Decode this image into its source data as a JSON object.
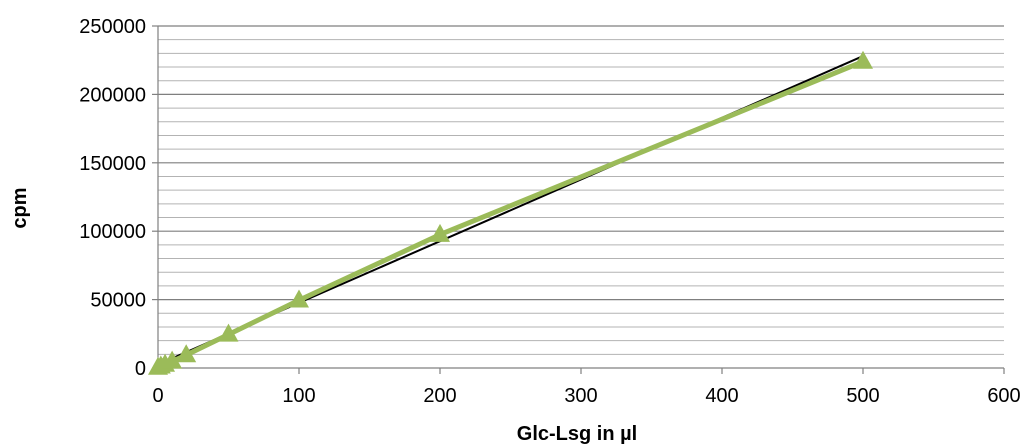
{
  "chart_data": {
    "type": "scatter",
    "xlabel": "Glc-Lsg in µl",
    "ylabel": "cpm",
    "xlim": [
      0,
      600
    ],
    "ylim": [
      0,
      250000
    ],
    "x_ticks": [
      0,
      100,
      200,
      300,
      400,
      500,
      600
    ],
    "y_ticks": [
      0,
      50000,
      100000,
      150000,
      200000,
      250000
    ],
    "x_tick_labels": [
      "0",
      "100",
      "200",
      "300",
      "400",
      "500",
      "600"
    ],
    "y_tick_labels": [
      "0",
      "50000",
      "100000",
      "150000",
      "200000",
      "250000"
    ],
    "grid": "horizontal major and minor",
    "legend": "none",
    "series": [
      {
        "marker": "triangle",
        "connected": true,
        "color": "#9BBB59",
        "points": [
          {
            "x": 0,
            "y": 300
          },
          {
            "x": 2,
            "y": 1200
          },
          {
            "x": 5,
            "y": 2500
          },
          {
            "x": 10,
            "y": 4800
          },
          {
            "x": 20,
            "y": 9500
          },
          {
            "x": 50,
            "y": 24500
          },
          {
            "x": 100,
            "y": 49500
          },
          {
            "x": 200,
            "y": 97500
          },
          {
            "x": 500,
            "y": 224000
          }
        ]
      }
    ],
    "trendline": {
      "type": "linear",
      "color": "#000000",
      "from": {
        "x": 0,
        "y": 2500
      },
      "to": {
        "x": 500,
        "y": 228000
      }
    }
  }
}
